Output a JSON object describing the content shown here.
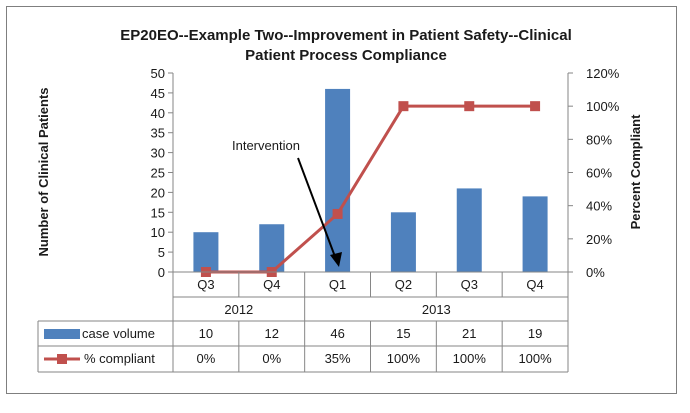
{
  "chart_data": {
    "type": "bar",
    "title_line1": "EP20EO--Example Two--Improvement in Patient Safety--Clinical",
    "title_line2": "Patient Process Compliance",
    "ylabel": "Number of Clinical Patients",
    "y2label": "Percent Compliant",
    "ylim": [
      0,
      50
    ],
    "yticks": [
      "0",
      "5",
      "10",
      "15",
      "20",
      "25",
      "30",
      "35",
      "40",
      "45",
      "50"
    ],
    "y2lim": [
      0,
      120
    ],
    "y2ticks": [
      "0%",
      "20%",
      "40%",
      "60%",
      "80%",
      "100%",
      "120%"
    ],
    "categories": [
      "Q3",
      "Q4",
      "Q1",
      "Q2",
      "Q3",
      "Q4"
    ],
    "years": [
      {
        "label": "2012",
        "span": 2
      },
      {
        "label": "2013",
        "span": 4
      }
    ],
    "series": [
      {
        "name": "case volume",
        "type": "bar",
        "color": "#4F81BD",
        "values": [
          10,
          12,
          46,
          15,
          21,
          19
        ],
        "table_labels": [
          "10",
          "12",
          "46",
          "15",
          "21",
          "19"
        ]
      },
      {
        "name": "% compliant",
        "type": "line",
        "color": "#C0504D",
        "values": [
          0,
          0,
          35,
          100,
          100,
          100
        ],
        "table_labels": [
          "0%",
          "0%",
          "35%",
          "100%",
          "100%",
          "100%"
        ]
      }
    ],
    "annotation": {
      "text": "Intervention",
      "points_to": "Q1"
    },
    "grid": false,
    "legend": "data-table"
  }
}
